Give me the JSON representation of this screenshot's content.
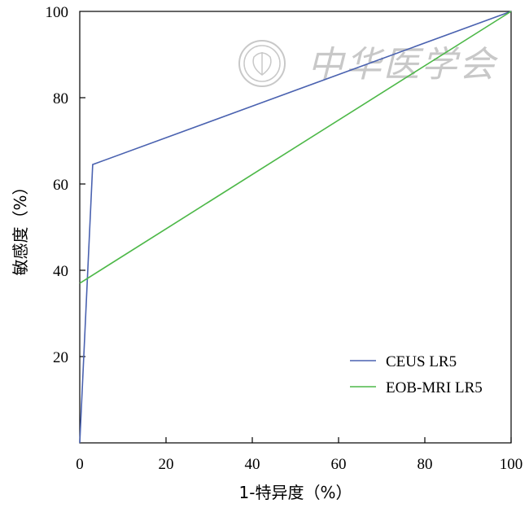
{
  "chart_data": {
    "type": "line",
    "title": "",
    "xlabel": "1-特异度（%）",
    "ylabel": "敏感度（%）",
    "xlim": [
      0,
      100
    ],
    "ylim": [
      0,
      100
    ],
    "xticks": [
      0,
      20,
      40,
      60,
      80,
      100
    ],
    "xtick_labels": [
      "0",
      "20",
      "40",
      "60",
      "80",
      "100"
    ],
    "yticks": [
      20,
      40,
      60,
      80,
      100
    ],
    "ytick_labels": [
      "20",
      "40",
      "60",
      "80",
      "100"
    ],
    "grid": false,
    "legend_position": "bottom-right",
    "series": [
      {
        "name": "CEUS LR5",
        "color": "#4a62b0",
        "x": [
          0,
          3,
          100
        ],
        "y": [
          0,
          64.5,
          100
        ]
      },
      {
        "name": "EOB-MRI LR5",
        "color": "#4db848",
        "x": [
          0,
          100
        ],
        "y": [
          37,
          100
        ]
      }
    ]
  },
  "watermark": {
    "text": "中华医学会",
    "color": "#c8c8c8",
    "icon": "society-seal-icon"
  }
}
